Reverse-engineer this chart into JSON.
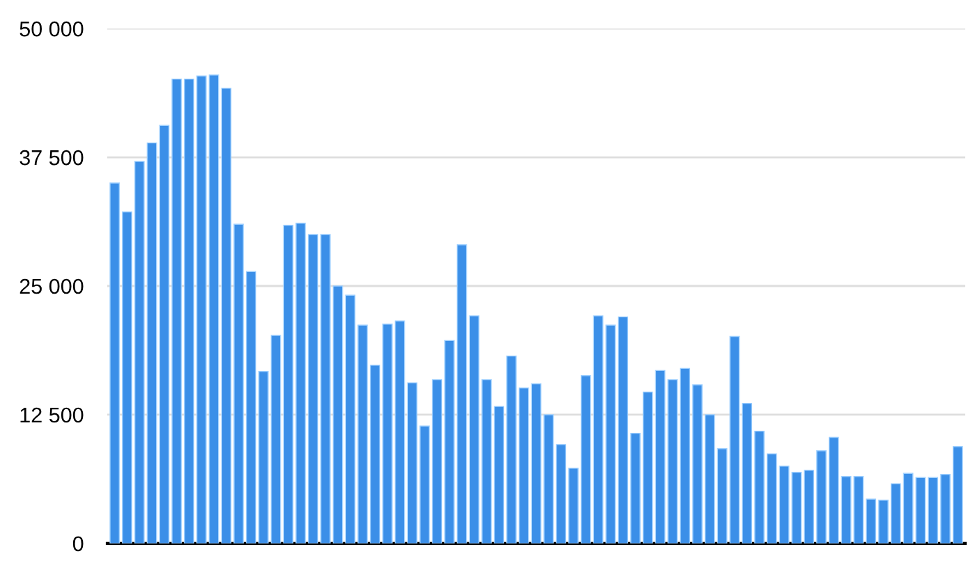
{
  "chart_data": {
    "type": "bar",
    "categories": [
      null,
      null,
      null,
      null,
      null,
      null,
      null,
      null,
      null,
      null,
      null,
      null,
      null,
      null,
      null,
      null,
      null,
      null,
      null,
      null,
      null,
      null,
      null,
      null,
      null,
      null,
      null,
      null,
      null,
      null,
      null,
      null,
      null,
      null,
      null,
      null,
      null,
      null,
      null,
      null,
      null,
      null,
      null,
      null,
      null,
      null,
      null,
      null,
      null,
      null,
      null,
      null,
      null,
      null,
      null,
      null,
      null,
      null,
      null,
      null,
      null,
      null,
      null,
      null,
      null,
      null,
      null,
      null,
      null
    ],
    "values": [
      35000,
      32200,
      37100,
      38900,
      40600,
      45100,
      45100,
      45400,
      45500,
      44200,
      31000,
      26400,
      16700,
      20200,
      30900,
      31100,
      30000,
      30000,
      25000,
      24100,
      21200,
      17300,
      21300,
      21600,
      15600,
      11400,
      15900,
      19700,
      29000,
      22100,
      15900,
      13300,
      18200,
      15100,
      15500,
      12500,
      9600,
      7300,
      16300,
      22100,
      21200,
      22000,
      10700,
      14700,
      16800,
      15900,
      17000,
      15400,
      12500,
      9200,
      20100,
      13600,
      10900,
      8700,
      7500,
      6900,
      7100,
      9000,
      10300,
      6500,
      6500,
      4300,
      4200,
      5800,
      6800,
      6400,
      6400,
      6700,
      9400
    ],
    "color": "#3b8fe8",
    "ylim": [
      0,
      50000
    ],
    "yticks": [
      0,
      {
        "value": 12500,
        "label": "12 500"
      },
      {
        "value": 25000,
        "label": "25 000"
      },
      {
        "value": 37500,
        "label": "37 500"
      },
      {
        "value": 50000,
        "label": "50 000"
      }
    ],
    "grid": "y"
  }
}
